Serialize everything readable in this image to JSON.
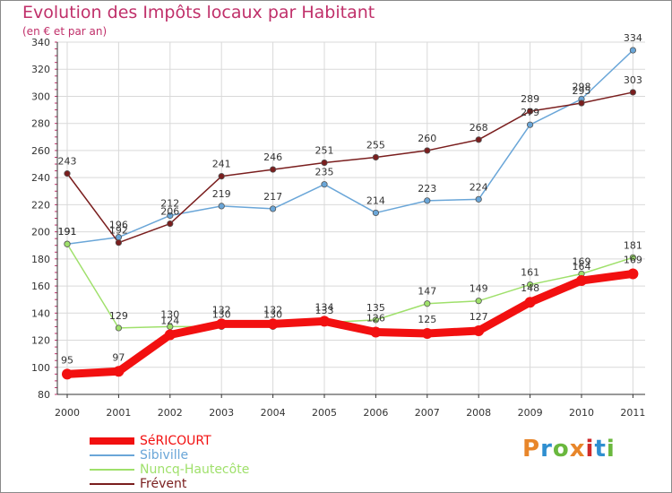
{
  "header": {
    "title": "Evolution des Impôts locaux par Habitant",
    "subtitle": "(en € et par an)"
  },
  "logo": {
    "text": "Proxiti",
    "colors": [
      "#e8862a",
      "#2f8fd0",
      "#6ab83e",
      "#e8862a",
      "#d02a2a",
      "#2f8fd0",
      "#6ab83e"
    ]
  },
  "colors": {
    "title": "#c0306a",
    "grid": "#d9d9d9",
    "axis": "#333333"
  },
  "chart_data": {
    "type": "line",
    "title": "Evolution des Impôts locaux par Habitant",
    "subtitle": "(en € et par an)",
    "xlabel": "",
    "ylabel": "",
    "ylim": [
      80,
      340
    ],
    "yticks": [
      80,
      100,
      120,
      140,
      160,
      180,
      200,
      220,
      240,
      260,
      280,
      300,
      320,
      340
    ],
    "grid": true,
    "legend_position": "bottom-left",
    "categories": [
      "2000",
      "2001",
      "2002",
      "2003",
      "2004",
      "2005",
      "2006",
      "2007",
      "2008",
      "2009",
      "2010",
      "2011"
    ],
    "series": [
      {
        "name": "SéRICOURT",
        "color": "#f21010",
        "width": 9,
        "values": [
          95,
          97,
          124,
          132,
          132,
          134,
          126,
          125,
          127,
          148,
          164,
          169
        ]
      },
      {
        "name": "Sibiville",
        "color": "#6aa6d8",
        "width": 1.5,
        "values": [
          191,
          196,
          212,
          219,
          217,
          235,
          214,
          223,
          224,
          279,
          298,
          334
        ]
      },
      {
        "name": "Nuncq-Hautecôte",
        "color": "#9fe06b",
        "width": 1.5,
        "values": [
          191,
          129,
          130,
          130,
          130,
          133,
          135,
          147,
          149,
          161,
          169,
          181
        ]
      },
      {
        "name": "Frévent",
        "color": "#7a1e1e",
        "width": 1.5,
        "values": [
          243,
          192,
          206,
          241,
          246,
          251,
          255,
          260,
          268,
          289,
          295,
          303
        ]
      }
    ]
  }
}
